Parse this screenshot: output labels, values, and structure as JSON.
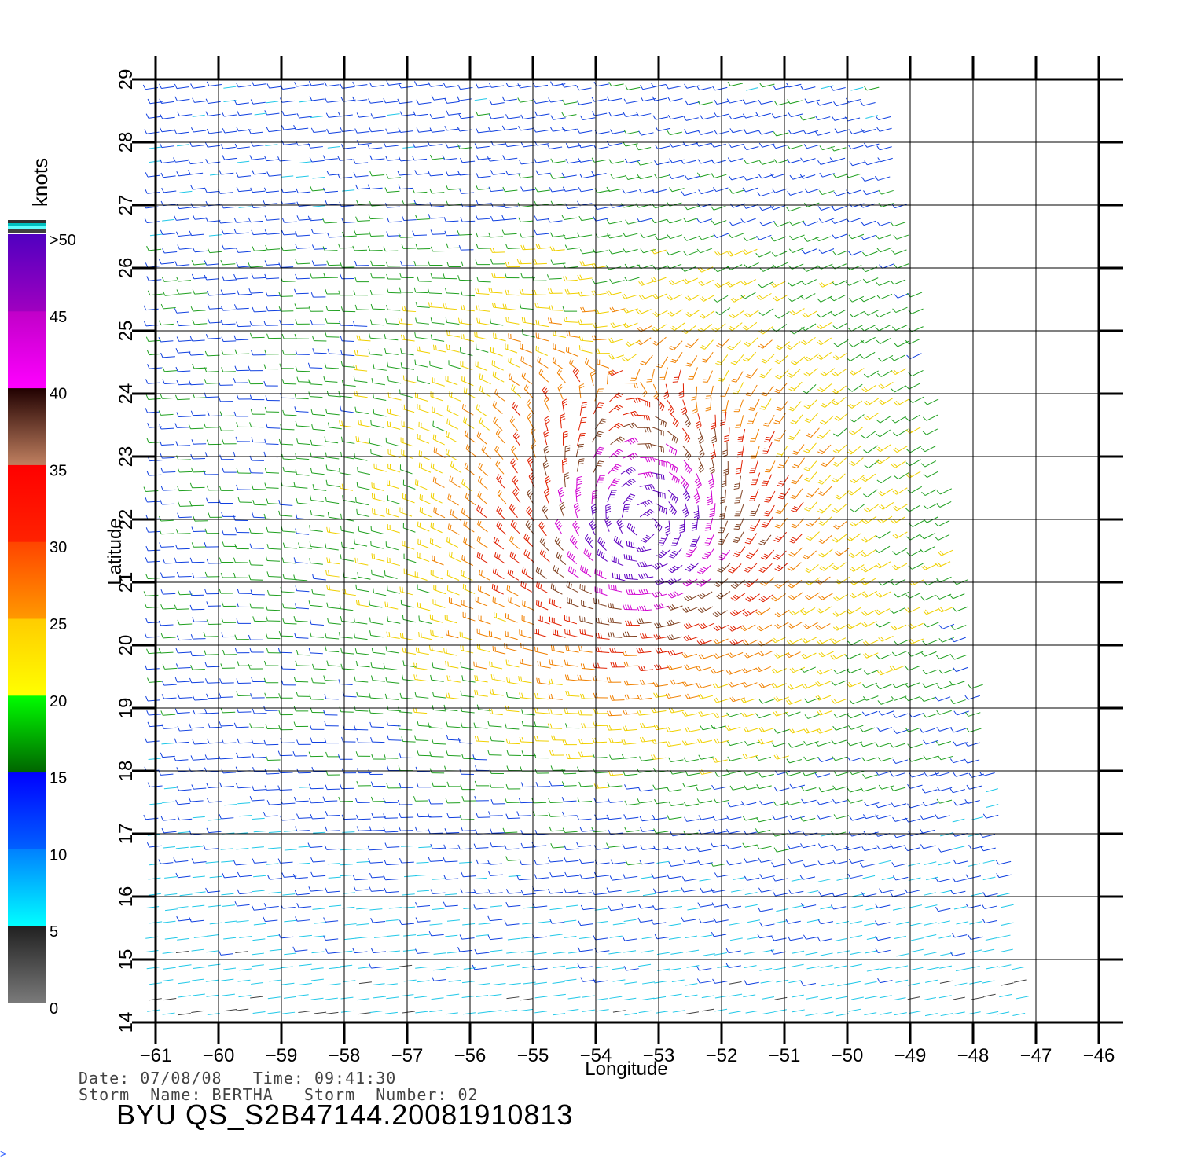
{
  "map": {
    "x_axis_label": "Longitude",
    "y_axis_label": "Latitude",
    "lon_ticks": [
      -61,
      -60,
      -59,
      -58,
      -57,
      -56,
      -55,
      -54,
      -53,
      -52,
      -51,
      -50,
      -49,
      -48,
      -47,
      -46
    ],
    "lat_ticks": [
      14,
      15,
      16,
      17,
      18,
      19,
      20,
      21,
      22,
      23,
      24,
      25,
      26,
      27,
      28,
      29
    ],
    "lon_tick_labels": [
      "−61",
      "−60",
      "−59",
      "−58",
      "−57",
      "−56",
      "−55",
      "−54",
      "−53",
      "−52",
      "−51",
      "−50",
      "−49",
      "−48",
      "−47",
      "−46"
    ],
    "lat_tick_labels": [
      "14",
      "15",
      "16",
      "17",
      "18",
      "19",
      "20",
      "21",
      "22",
      "23",
      "24",
      "25",
      "26",
      "27",
      "28",
      "29"
    ],
    "lon_range": [
      -61,
      -46
    ],
    "lat_range": [
      14,
      29
    ],
    "swath_edge": "right",
    "grid": true
  },
  "legend": {
    "unit_label": "knots",
    "tick_labels": [
      ">50",
      "45",
      "40",
      "35",
      "30",
      "25",
      "20",
      "15",
      "10",
      "5",
      "0"
    ],
    "bands": [
      {
        "from": 0,
        "to": 5,
        "colors": [
          "#7a7a7a",
          "#202020"
        ]
      },
      {
        "from": 5,
        "to": 10,
        "colors": [
          "#00ffff",
          "#0080ff"
        ]
      },
      {
        "from": 10,
        "to": 15,
        "colors": [
          "#0060ff",
          "#0000ff"
        ]
      },
      {
        "from": 15,
        "to": 20,
        "colors": [
          "#006400",
          "#00ff00"
        ]
      },
      {
        "from": 20,
        "to": 25,
        "colors": [
          "#ffff00",
          "#ffcc00"
        ]
      },
      {
        "from": 25,
        "to": 30,
        "colors": [
          "#ff9900",
          "#ff4400"
        ]
      },
      {
        "from": 30,
        "to": 35,
        "colors": [
          "#ff2200",
          "#ff0000"
        ]
      },
      {
        "from": 35,
        "to": 40,
        "colors": [
          "#c08060",
          "#200000"
        ]
      },
      {
        "from": 40,
        "to": 45,
        "colors": [
          "#ff00ff",
          "#c000c8"
        ]
      },
      {
        "from": 45,
        "to": 50,
        "colors": [
          "#a000c0",
          "#5000c0"
        ]
      }
    ],
    "cap_colors": [
      "#303030",
      "#00c0c0",
      "#60ffff",
      "#404040"
    ]
  },
  "storm": {
    "center_lon": -53.2,
    "center_lat": 21.9,
    "peak_knots": 50
  },
  "footer": {
    "date_line": "Date: 07/08/08   Time: 09:41:30",
    "storm_line": "Storm  Name: BERTHA   Storm  Number: 02",
    "product": "BYU  QS_S2B47144.20081910813",
    "corner_mark": ">"
  }
}
